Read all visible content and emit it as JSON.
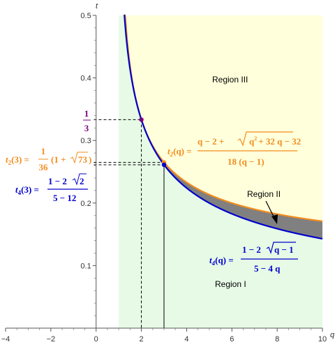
{
  "chart_data": {
    "type": "area",
    "xlabel": "q",
    "ylabel": "t",
    "xlim": [
      -4,
      10
    ],
    "ylim": [
      0,
      0.5
    ],
    "x_ticks": [
      "-4",
      "-2",
      "0",
      "2",
      "4",
      "6",
      "8",
      "10"
    ],
    "y_ticks": [
      "0.1",
      "0.2",
      "0.3",
      "0.4",
      "0.5"
    ],
    "series": [
      {
        "name": "t2(q)",
        "formula": "(q - 2 + sqrt(q^2 + 32 q - 32)) / (18 (q - 1))",
        "color": "#f28c1e",
        "points": [
          [
            1.09,
            0.5
          ],
          [
            1.25,
            0.49
          ],
          [
            1.5,
            0.41
          ],
          [
            2,
            0.3333
          ],
          [
            2.5,
            0.2907
          ],
          [
            3,
            0.2649
          ],
          [
            4,
            0.2353
          ],
          [
            5,
            0.2179
          ],
          [
            6,
            0.2058
          ],
          [
            7,
            0.1967
          ],
          [
            8,
            0.1895
          ],
          [
            9,
            0.1836
          ],
          [
            10,
            0.1787
          ]
        ]
      },
      {
        "name": "t4(q)",
        "formula": "(1 - 2 sqrt(q - 1)) / (5 - 4 q)",
        "color": "#0000cc",
        "points": [
          [
            1.1,
            0.5
          ],
          [
            1.25,
            0.5
          ],
          [
            1.5,
            0.4142
          ],
          [
            2,
            0.3333
          ],
          [
            2.5,
            0.2899
          ],
          [
            3,
            0.2612
          ],
          [
            4,
            0.2245
          ],
          [
            5,
            0.2
          ],
          [
            6,
            0.1819
          ],
          [
            7,
            0.1677
          ],
          [
            8,
            0.1562
          ],
          [
            9,
            0.1466
          ],
          [
            10,
            0.1386
          ]
        ]
      }
    ],
    "points": [
      {
        "q": 2,
        "t": 0.3333,
        "color": "#7a0080"
      },
      {
        "q": 3,
        "t": 0.2649,
        "color": "#f28c1e"
      },
      {
        "q": 3,
        "t": 0.2612,
        "color": "#0000cc"
      }
    ],
    "regions": [
      {
        "label": "Region I",
        "color": "#e6fae6"
      },
      {
        "label": "Region II",
        "color": "#808080"
      },
      {
        "label": "Region III",
        "color": "#ffffdb"
      }
    ],
    "annotations": {
      "third_num": "1",
      "third_den": "3",
      "t2_label": "t",
      "t2_sub": "2",
      "t2_arg": "(q) =",
      "t2_num_a": "q − 2 +",
      "t2_num_sq": "q",
      "t2_num_exp": "2",
      "t2_num_b": "+ 32 q − 32",
      "t2_den": "18 (q − 1)",
      "t23_lhs": "(3) =",
      "t23_num": "1",
      "t23_den": "36",
      "t23_paren": "(1 +",
      "t23_sqrt": "73",
      "t23_close": ")",
      "t4_label": "t",
      "t4_sub": "4",
      "t4_arg": "(q) =",
      "t4_num": "1 − 2",
      "t4_num_sqrt": "q − 1",
      "t4_den": "5 − 4 q",
      "t43_lhs": "(3) =",
      "t43_num": "1 − 2",
      "t43_sqrt": "2",
      "t43_den": "5 − 12"
    }
  },
  "colors": {
    "orange": "#f28c1e",
    "blue": "#0000cc",
    "purple": "#7a0080"
  }
}
